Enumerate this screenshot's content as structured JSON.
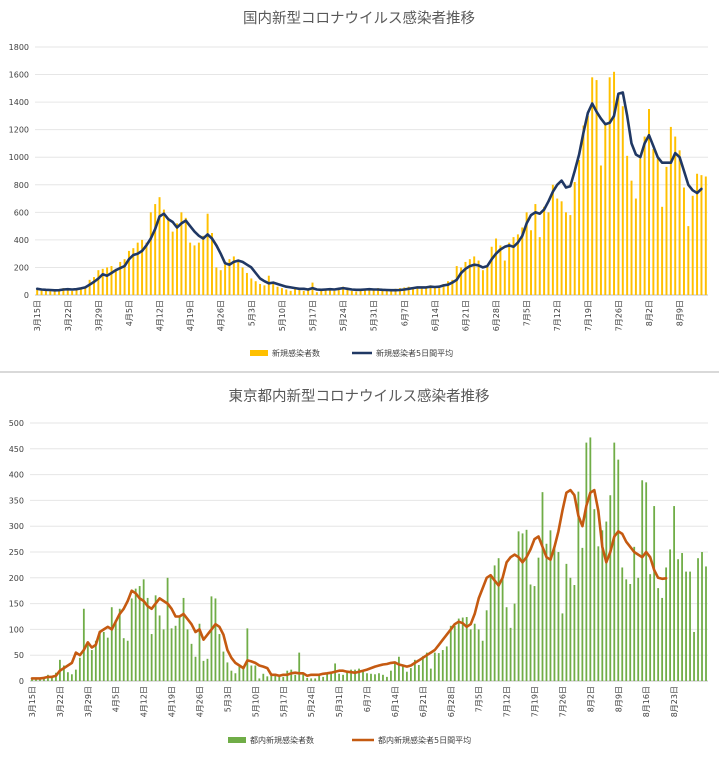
{
  "chart_data": [
    {
      "type": "bar",
      "title": "国内新型コロナウイルス感染者推移",
      "x_ticks": [
        "3月15日",
        "3月22日",
        "3月29日",
        "4月5日",
        "4月12日",
        "4月19日",
        "4月26日",
        "5月3日",
        "5月10日",
        "5月17日",
        "5月24日",
        "5月31日",
        "6月7日",
        "6月14日",
        "6月21日",
        "6月28日",
        "7月5日",
        "7月12日",
        "7月19日",
        "7月26日",
        "8月2日",
        "8月9日",
        "8月16日",
        "8月23日"
      ],
      "ylim": [
        0,
        1800
      ],
      "yticks": [
        0,
        200,
        400,
        600,
        800,
        1000,
        1200,
        1400,
        1600,
        1800
      ],
      "grid": true,
      "legend_position": "bottom",
      "colors": {
        "bars": "#ffc000",
        "bars_highlight": "#ffc000",
        "line": "#203864"
      },
      "series": [
        {
          "name": "新規感染者数",
          "kind": "bar",
          "values": [
            40,
            35,
            30,
            32,
            30,
            28,
            50,
            40,
            30,
            45,
            55,
            60,
            110,
            130,
            180,
            190,
            200,
            210,
            190,
            240,
            260,
            320,
            340,
            380,
            400,
            380,
            600,
            660,
            710,
            620,
            560,
            460,
            520,
            600,
            560,
            380,
            360,
            380,
            430,
            590,
            450,
            200,
            180,
            220,
            260,
            280,
            240,
            200,
            160,
            120,
            100,
            80,
            70,
            140,
            80,
            60,
            50,
            40,
            30,
            50,
            40,
            30,
            40,
            90,
            20,
            30,
            35,
            40,
            30,
            50,
            60,
            40,
            30,
            25,
            40,
            45,
            50,
            35,
            50,
            45,
            40,
            40,
            45,
            50,
            55,
            60,
            50,
            55,
            60,
            50,
            70,
            60,
            50,
            80,
            100,
            110,
            210,
            200,
            240,
            260,
            280,
            250,
            180,
            210,
            350,
            410,
            360,
            250,
            380,
            420,
            440,
            490,
            600,
            470,
            660,
            420,
            640,
            600,
            800,
            700,
            680,
            600,
            580,
            820,
            980,
            1230,
            1300,
            1580,
            1560,
            940,
            1240,
            1580,
            1620,
            1460,
            1370,
            1010,
            830,
            700,
            990,
            1150,
            1350,
            1060,
            990,
            640,
            930,
            1220,
            1150,
            1050,
            780,
            500,
            720,
            880,
            870,
            860
          ]
        },
        {
          "name": "新規感染者5日間平均",
          "kind": "line",
          "values": [
            45,
            40,
            38,
            36,
            34,
            35,
            40,
            42,
            40,
            42,
            48,
            55,
            75,
            95,
            120,
            150,
            140,
            160,
            180,
            195,
            210,
            260,
            290,
            300,
            320,
            360,
            410,
            480,
            570,
            590,
            550,
            530,
            490,
            520,
            540,
            500,
            460,
            430,
            410,
            440,
            410,
            360,
            300,
            230,
            220,
            240,
            250,
            240,
            220,
            200,
            160,
            120,
            100,
            85,
            90,
            80,
            70,
            60,
            55,
            50,
            45,
            45,
            40,
            50,
            40,
            38,
            40,
            42,
            40,
            45,
            50,
            45,
            40,
            38,
            38,
            40,
            42,
            40,
            40,
            38,
            36,
            35,
            35,
            36,
            40,
            45,
            50,
            55,
            55,
            55,
            60,
            58,
            60,
            70,
            75,
            90,
            110,
            160,
            190,
            210,
            220,
            215,
            200,
            210,
            260,
            300,
            330,
            350,
            360,
            350,
            380,
            430,
            520,
            580,
            600,
            590,
            620,
            680,
            750,
            800,
            830,
            780,
            790,
            900,
            1020,
            1180,
            1320,
            1390,
            1330,
            1280,
            1240,
            1250,
            1300,
            1460,
            1470,
            1300,
            1100,
            1020,
            1000,
            1100,
            1160,
            1080,
            1000,
            960,
            960,
            960,
            1030,
            1000,
            900,
            800,
            760,
            740,
            770
          ]
        }
      ]
    },
    {
      "type": "bar",
      "title": "東京都内新型コロナウイルス感染者推移",
      "x_ticks": [
        "3月15日",
        "3月22日",
        "3月29日",
        "4月5日",
        "4月12日",
        "4月19日",
        "4月26日",
        "5月3日",
        "5月10日",
        "5月17日",
        "5月24日",
        "5月31日",
        "6月7日",
        "6月14日",
        "6月21日",
        "6月28日",
        "7月5日",
        "7月12日",
        "7月19日",
        "7月26日",
        "8月2日",
        "8月9日",
        "8月16日",
        "8月23日"
      ],
      "ylim": [
        0,
        500
      ],
      "yticks": [
        0,
        50,
        100,
        150,
        200,
        250,
        300,
        350,
        400,
        450,
        500
      ],
      "grid": true,
      "legend_position": "bottom",
      "colors": {
        "bars": "#70ad47",
        "line": "#c55a11"
      },
      "series": [
        {
          "name": "都内新規感染者数",
          "kind": "bar",
          "values": [
            5,
            3,
            4,
            8,
            12,
            7,
            16,
            41,
            30,
            17,
            13,
            22,
            45,
            140,
            70,
            60,
            78,
            97,
            95,
            84,
            143,
            118,
            140,
            83,
            78,
            160,
            179,
            184,
            197,
            161,
            91,
            166,
            127,
            100,
            200,
            102,
            107,
            123,
            161,
            100,
            72,
            47,
            111,
            39,
            43,
            164,
            160,
            91,
            57,
            36,
            20,
            15,
            30,
            25,
            102,
            30,
            30,
            5,
            14,
            9,
            15,
            14,
            10,
            8,
            20,
            22,
            12,
            55,
            15,
            6,
            5,
            5,
            14,
            8,
            13,
            16,
            34,
            14,
            12,
            20,
            22,
            22,
            24,
            18,
            15,
            14,
            13,
            15,
            12,
            8,
            20,
            35,
            47,
            30,
            18,
            25,
            41,
            31,
            48,
            55,
            24,
            55,
            54,
            60,
            67,
            107,
            107,
            121,
            123,
            124,
            100,
            111,
            100,
            78,
            137,
            206,
            224,
            238,
            200,
            143,
            103,
            150,
            290,
            286,
            293,
            187,
            184,
            239,
            366,
            266,
            292,
            258,
            250,
            131,
            227,
            200,
            186,
            367,
            258,
            462,
            472,
            333,
            261,
            292,
            309,
            360,
            462,
            429,
            220,
            197,
            188,
            260,
            200,
            389,
            385,
            207,
            339,
            180,
            161,
            220,
            255,
            339,
            236,
            248,
            212,
            212,
            95,
            238,
            250,
            222
          ]
        },
        {
          "name": "都内新規感染者5日間平均",
          "kind": "line",
          "values": [
            5,
            5,
            5,
            6,
            8,
            8,
            10,
            20,
            25,
            30,
            35,
            55,
            50,
            60,
            75,
            65,
            70,
            95,
            100,
            105,
            100,
            115,
            130,
            140,
            155,
            175,
            170,
            160,
            155,
            145,
            140,
            150,
            160,
            155,
            150,
            140,
            125,
            125,
            130,
            120,
            110,
            95,
            100,
            80,
            90,
            100,
            110,
            105,
            90,
            60,
            45,
            35,
            30,
            25,
            40,
            38,
            35,
            30,
            28,
            25,
            12,
            12,
            10,
            12,
            12,
            15,
            16,
            15,
            15,
            10,
            12,
            12,
            12,
            14,
            15,
            16,
            18,
            20,
            20,
            18,
            17,
            16,
            18,
            20,
            22,
            25,
            28,
            30,
            32,
            33,
            35,
            36,
            32,
            30,
            28,
            30,
            35,
            40,
            45,
            50,
            55,
            60,
            70,
            80,
            90,
            100,
            110,
            115,
            112,
            105,
            110,
            130,
            160,
            180,
            200,
            205,
            195,
            185,
            200,
            230,
            240,
            245,
            240,
            230,
            240,
            255,
            275,
            280,
            260,
            240,
            235,
            260,
            290,
            330,
            365,
            370,
            360,
            320,
            300,
            340,
            365,
            370,
            330,
            260,
            230,
            250,
            280,
            290,
            285,
            270,
            260,
            250,
            245,
            240,
            250,
            240,
            215,
            200,
            198,
            199
          ]
        }
      ]
    }
  ]
}
